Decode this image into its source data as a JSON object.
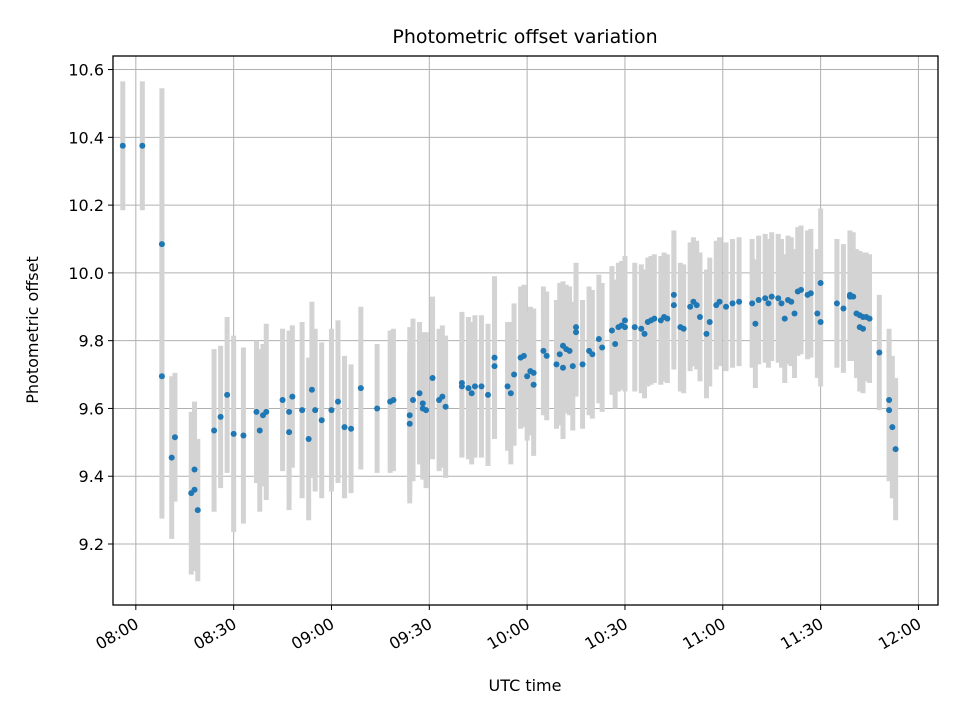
{
  "chart_data": {
    "type": "scatter",
    "title": "Photometric offset variation",
    "xlabel": "UTC time",
    "ylabel": "Photometric offset",
    "x_ticks": [
      "08:00",
      "08:30",
      "09:00",
      "09:30",
      "10:00",
      "10:30",
      "11:00",
      "11:30",
      "12:00"
    ],
    "y_ticks": [
      "9.2",
      "9.4",
      "9.6",
      "9.8",
      "10.0",
      "10.2",
      "10.4",
      "10.6"
    ],
    "xlim": [
      "07:53",
      "12:06"
    ],
    "ylim": [
      9.02,
      10.64
    ],
    "grid": true,
    "colors": {
      "points": "#1f77b4",
      "errorbars": "#d3d3d3",
      "grid": "#b0b0b0"
    },
    "series": [
      {
        "marker": "dot",
        "errorbar": "vertical",
        "points": [
          {
            "x": "07:56",
            "y": 10.375,
            "e": 0.19
          },
          {
            "x": "08:02",
            "y": 10.375,
            "e": 0.19
          },
          {
            "x": "08:08",
            "y": 10.085,
            "e": 0.46
          },
          {
            "x": "08:08",
            "y": 9.695,
            "e": 0.42
          },
          {
            "x": "08:11",
            "y": 9.455,
            "e": 0.24
          },
          {
            "x": "08:12",
            "y": 9.515,
            "e": 0.19
          },
          {
            "x": "08:17",
            "y": 9.35,
            "e": 0.24
          },
          {
            "x": "08:18",
            "y": 9.36,
            "e": 0.24
          },
          {
            "x": "08:18",
            "y": 9.42,
            "e": 0.2
          },
          {
            "x": "08:19",
            "y": 9.3,
            "e": 0.21
          },
          {
            "x": "08:24",
            "y": 9.535,
            "e": 0.24
          },
          {
            "x": "08:26",
            "y": 9.575,
            "e": 0.21
          },
          {
            "x": "08:28",
            "y": 9.64,
            "e": 0.23
          },
          {
            "x": "08:30",
            "y": 9.525,
            "e": 0.29
          },
          {
            "x": "08:33",
            "y": 9.52,
            "e": 0.26
          },
          {
            "x": "08:37",
            "y": 9.59,
            "e": 0.21
          },
          {
            "x": "08:38",
            "y": 9.535,
            "e": 0.24
          },
          {
            "x": "08:39",
            "y": 9.58,
            "e": 0.21
          },
          {
            "x": "08:40",
            "y": 9.59,
            "e": 0.26
          },
          {
            "x": "08:45",
            "y": 9.625,
            "e": 0.21
          },
          {
            "x": "08:47",
            "y": 9.53,
            "e": 0.23
          },
          {
            "x": "08:47",
            "y": 9.59,
            "e": 0.24
          },
          {
            "x": "08:48",
            "y": 9.635,
            "e": 0.21
          },
          {
            "x": "08:51",
            "y": 9.595,
            "e": 0.26
          },
          {
            "x": "08:53",
            "y": 9.51,
            "e": 0.24
          },
          {
            "x": "08:54",
            "y": 9.655,
            "e": 0.26
          },
          {
            "x": "08:55",
            "y": 9.595,
            "e": 0.24
          },
          {
            "x": "08:57",
            "y": 9.565,
            "e": 0.23
          },
          {
            "x": "09:00",
            "y": 9.595,
            "e": 0.24
          },
          {
            "x": "09:02",
            "y": 9.62,
            "e": 0.24
          },
          {
            "x": "09:04",
            "y": 9.545,
            "e": 0.21
          },
          {
            "x": "09:06",
            "y": 9.54,
            "e": 0.19
          },
          {
            "x": "09:09",
            "y": 9.66,
            "e": 0.24
          },
          {
            "x": "09:14",
            "y": 9.6,
            "e": 0.19
          },
          {
            "x": "09:18",
            "y": 9.62,
            "e": 0.21
          },
          {
            "x": "09:19",
            "y": 9.625,
            "e": 0.21
          },
          {
            "x": "09:24",
            "y": 9.555,
            "e": 0.21
          },
          {
            "x": "09:24",
            "y": 9.58,
            "e": 0.26
          },
          {
            "x": "09:25",
            "y": 9.625,
            "e": 0.24
          },
          {
            "x": "09:27",
            "y": 9.645,
            "e": 0.21
          },
          {
            "x": "09:28",
            "y": 9.6,
            "e": 0.21
          },
          {
            "x": "09:28",
            "y": 9.615,
            "e": 0.21
          },
          {
            "x": "09:29",
            "y": 9.595,
            "e": 0.23
          },
          {
            "x": "09:31",
            "y": 9.69,
            "e": 0.24
          },
          {
            "x": "09:33",
            "y": 9.625,
            "e": 0.21
          },
          {
            "x": "09:34",
            "y": 9.635,
            "e": 0.21
          },
          {
            "x": "09:35",
            "y": 9.605,
            "e": 0.21
          },
          {
            "x": "09:40",
            "y": 9.675,
            "e": 0.21
          },
          {
            "x": "09:40",
            "y": 9.665,
            "e": 0.21
          },
          {
            "x": "09:42",
            "y": 9.66,
            "e": 0.21
          },
          {
            "x": "09:43",
            "y": 9.645,
            "e": 0.21
          },
          {
            "x": "09:44",
            "y": 9.665,
            "e": 0.21
          },
          {
            "x": "09:46",
            "y": 9.665,
            "e": 0.21
          },
          {
            "x": "09:48",
            "y": 9.64,
            "e": 0.21
          },
          {
            "x": "09:50",
            "y": 9.75,
            "e": 0.24
          },
          {
            "x": "09:50",
            "y": 9.725,
            "e": 0.21
          },
          {
            "x": "09:54",
            "y": 9.665,
            "e": 0.19
          },
          {
            "x": "09:55",
            "y": 9.645,
            "e": 0.21
          },
          {
            "x": "09:56",
            "y": 9.7,
            "e": 0.21
          },
          {
            "x": "09:58",
            "y": 9.75,
            "e": 0.21
          },
          {
            "x": "09:59",
            "y": 9.755,
            "e": 0.21
          },
          {
            "x": "10:00",
            "y": 9.695,
            "e": 0.19
          },
          {
            "x": "10:01",
            "y": 9.71,
            "e": 0.19
          },
          {
            "x": "10:02",
            "y": 9.705,
            "e": 0.19
          },
          {
            "x": "10:02",
            "y": 9.67,
            "e": 0.21
          },
          {
            "x": "10:05",
            "y": 9.77,
            "e": 0.19
          },
          {
            "x": "10:06",
            "y": 9.755,
            "e": 0.19
          },
          {
            "x": "10:09",
            "y": 9.73,
            "e": 0.19
          },
          {
            "x": "10:10",
            "y": 9.76,
            "e": 0.21
          },
          {
            "x": "10:11",
            "y": 9.785,
            "e": 0.19
          },
          {
            "x": "10:11",
            "y": 9.72,
            "e": 0.21
          },
          {
            "x": "10:12",
            "y": 9.775,
            "e": 0.19
          },
          {
            "x": "10:13",
            "y": 9.77,
            "e": 0.19
          },
          {
            "x": "10:14",
            "y": 9.725,
            "e": 0.19
          },
          {
            "x": "10:15",
            "y": 9.84,
            "e": 0.19
          },
          {
            "x": "10:15",
            "y": 9.825,
            "e": 0.19
          },
          {
            "x": "10:17",
            "y": 9.73,
            "e": 0.19
          },
          {
            "x": "10:19",
            "y": 9.77,
            "e": 0.19
          },
          {
            "x": "10:20",
            "y": 9.76,
            "e": 0.19
          },
          {
            "x": "10:22",
            "y": 9.805,
            "e": 0.19
          },
          {
            "x": "10:23",
            "y": 9.78,
            "e": 0.19
          },
          {
            "x": "10:26",
            "y": 9.83,
            "e": 0.19
          },
          {
            "x": "10:27",
            "y": 9.79,
            "e": 0.19
          },
          {
            "x": "10:28",
            "y": 9.84,
            "e": 0.19
          },
          {
            "x": "10:29",
            "y": 9.845,
            "e": 0.19
          },
          {
            "x": "10:30",
            "y": 9.86,
            "e": 0.19
          },
          {
            "x": "10:30",
            "y": 9.84,
            "e": 0.19
          },
          {
            "x": "10:33",
            "y": 9.84,
            "e": 0.19
          },
          {
            "x": "10:35",
            "y": 9.835,
            "e": 0.19
          },
          {
            "x": "10:36",
            "y": 9.82,
            "e": 0.19
          },
          {
            "x": "10:37",
            "y": 9.855,
            "e": 0.19
          },
          {
            "x": "10:38",
            "y": 9.86,
            "e": 0.19
          },
          {
            "x": "10:39",
            "y": 9.865,
            "e": 0.19
          },
          {
            "x": "10:41",
            "y": 9.86,
            "e": 0.19
          },
          {
            "x": "10:42",
            "y": 9.87,
            "e": 0.19
          },
          {
            "x": "10:43",
            "y": 9.865,
            "e": 0.19
          },
          {
            "x": "10:45",
            "y": 9.935,
            "e": 0.19
          },
          {
            "x": "10:45",
            "y": 9.905,
            "e": 0.19
          },
          {
            "x": "10:47",
            "y": 9.84,
            "e": 0.19
          },
          {
            "x": "10:48",
            "y": 9.835,
            "e": 0.19
          },
          {
            "x": "10:50",
            "y": 9.9,
            "e": 0.19
          },
          {
            "x": "10:51",
            "y": 9.915,
            "e": 0.19
          },
          {
            "x": "10:52",
            "y": 9.905,
            "e": 0.19
          },
          {
            "x": "10:53",
            "y": 9.87,
            "e": 0.19
          },
          {
            "x": "10:55",
            "y": 9.82,
            "e": 0.19
          },
          {
            "x": "10:56",
            "y": 9.855,
            "e": 0.19
          },
          {
            "x": "10:58",
            "y": 9.905,
            "e": 0.19
          },
          {
            "x": "10:59",
            "y": 9.915,
            "e": 0.19
          },
          {
            "x": "11:01",
            "y": 9.9,
            "e": 0.19
          },
          {
            "x": "11:03",
            "y": 9.91,
            "e": 0.19
          },
          {
            "x": "11:05",
            "y": 9.915,
            "e": 0.19
          },
          {
            "x": "11:09",
            "y": 9.91,
            "e": 0.19
          },
          {
            "x": "11:10",
            "y": 9.85,
            "e": 0.19
          },
          {
            "x": "11:11",
            "y": 9.92,
            "e": 0.19
          },
          {
            "x": "11:13",
            "y": 9.925,
            "e": 0.19
          },
          {
            "x": "11:14",
            "y": 9.91,
            "e": 0.19
          },
          {
            "x": "11:15",
            "y": 9.93,
            "e": 0.19
          },
          {
            "x": "11:17",
            "y": 9.925,
            "e": 0.19
          },
          {
            "x": "11:18",
            "y": 9.91,
            "e": 0.19
          },
          {
            "x": "11:19",
            "y": 9.865,
            "e": 0.19
          },
          {
            "x": "11:20",
            "y": 9.92,
            "e": 0.19
          },
          {
            "x": "11:21",
            "y": 9.915,
            "e": 0.19
          },
          {
            "x": "11:22",
            "y": 9.88,
            "e": 0.19
          },
          {
            "x": "11:23",
            "y": 9.945,
            "e": 0.19
          },
          {
            "x": "11:24",
            "y": 9.95,
            "e": 0.19
          },
          {
            "x": "11:26",
            "y": 9.935,
            "e": 0.19
          },
          {
            "x": "11:27",
            "y": 9.94,
            "e": 0.19
          },
          {
            "x": "11:29",
            "y": 9.88,
            "e": 0.19
          },
          {
            "x": "11:30",
            "y": 9.855,
            "e": 0.19
          },
          {
            "x": "11:30",
            "y": 9.97,
            "e": 0.22
          },
          {
            "x": "11:35",
            "y": 9.91,
            "e": 0.19
          },
          {
            "x": "11:37",
            "y": 9.895,
            "e": 0.19
          },
          {
            "x": "11:39",
            "y": 9.93,
            "e": 0.19
          },
          {
            "x": "11:39",
            "y": 9.935,
            "e": 0.19
          },
          {
            "x": "11:40",
            "y": 9.93,
            "e": 0.19
          },
          {
            "x": "11:41",
            "y": 9.88,
            "e": 0.19
          },
          {
            "x": "11:42",
            "y": 9.875,
            "e": 0.19
          },
          {
            "x": "11:42",
            "y": 9.84,
            "e": 0.19
          },
          {
            "x": "11:43",
            "y": 9.87,
            "e": 0.19
          },
          {
            "x": "11:43",
            "y": 9.835,
            "e": 0.19
          },
          {
            "x": "11:44",
            "y": 9.87,
            "e": 0.19
          },
          {
            "x": "11:45",
            "y": 9.865,
            "e": 0.19
          },
          {
            "x": "11:48",
            "y": 9.765,
            "e": 0.17
          },
          {
            "x": "11:51",
            "y": 9.595,
            "e": 0.21
          },
          {
            "x": "11:51",
            "y": 9.625,
            "e": 0.21
          },
          {
            "x": "11:52",
            "y": 9.545,
            "e": 0.21
          },
          {
            "x": "11:53",
            "y": 9.48,
            "e": 0.21
          }
        ]
      }
    ]
  }
}
